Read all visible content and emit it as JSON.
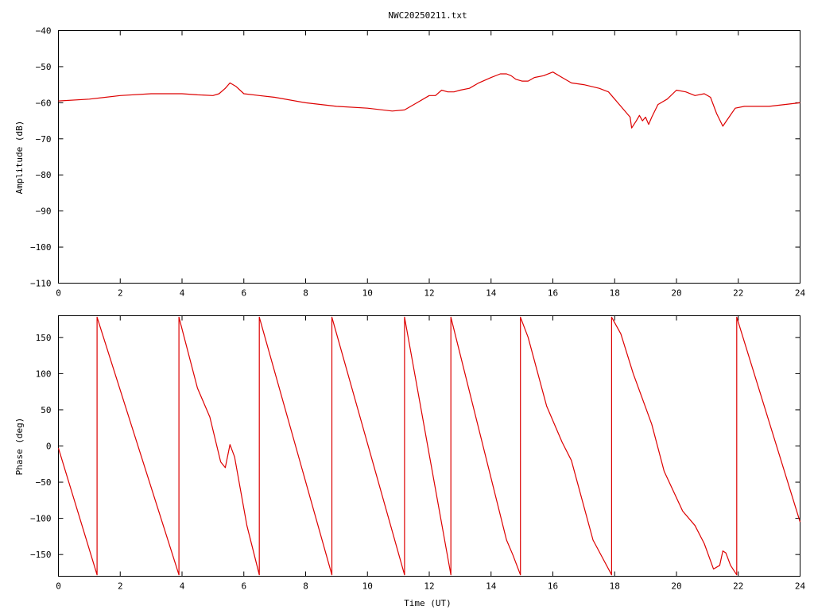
{
  "chart_data": [
    {
      "type": "line",
      "title": "NWC20250211.txt",
      "xlabel": "",
      "ylabel": "Amplitude (dB)",
      "xlim": [
        0,
        24
      ],
      "ylim": [
        -110,
        -40
      ],
      "x_ticks": [
        0,
        2,
        4,
        6,
        8,
        10,
        12,
        14,
        16,
        18,
        20,
        22,
        24
      ],
      "y_ticks": [
        -110,
        -100,
        -90,
        -80,
        -70,
        -60,
        -50,
        -40
      ],
      "y_tick_labels": [
        "−110",
        "−100",
        "−90",
        "−80",
        "−70",
        "−60",
        "−50",
        "−40"
      ],
      "grid": false,
      "color": "#dd0000",
      "series": [
        {
          "x": [
            0,
            1,
            2,
            3,
            4,
            4.5,
            5,
            5.2,
            5.4,
            5.55,
            5.75,
            6,
            6.5,
            7,
            8,
            9,
            10,
            10.8,
            11.2,
            11.6,
            12,
            12.2,
            12.4,
            12.6,
            12.8,
            13,
            13.3,
            13.6,
            14,
            14.3,
            14.5,
            14.65,
            14.8,
            15,
            15.2,
            15.4,
            15.7,
            16,
            16.3,
            16.6,
            17,
            17.5,
            17.8,
            18,
            18.3,
            18.5,
            18.55,
            18.7,
            18.8,
            18.9,
            19,
            19.1,
            19.2,
            19.4,
            19.7,
            20,
            20.3,
            20.6,
            20.9,
            21.1,
            21.3,
            21.5,
            21.7,
            21.9,
            22.2,
            23,
            24
          ],
          "y": [
            -59.5,
            -59,
            -58,
            -57.5,
            -57.5,
            -57.8,
            -58,
            -57.5,
            -56,
            -54.5,
            -55.5,
            -57.5,
            -58,
            -58.5,
            -60,
            -61,
            -61.5,
            -62.3,
            -62,
            -60,
            -58,
            -58,
            -56.5,
            -57,
            -57,
            -56.5,
            -56,
            -54.5,
            -53,
            -52,
            -52,
            -52.5,
            -53.5,
            -54,
            -54,
            -53,
            -52.5,
            -51.5,
            -53,
            -54.5,
            -55,
            -56,
            -57,
            -59,
            -62,
            -64,
            -67,
            -65,
            -63.5,
            -65,
            -64,
            -66,
            -64,
            -60.5,
            -59,
            -56.5,
            -57,
            -58,
            -57.5,
            -58.5,
            -63,
            -66.5,
            -64,
            -61.5,
            -61,
            -61,
            -60
          ]
        }
      ]
    },
    {
      "type": "line",
      "title": "",
      "xlabel": "Time (UT)",
      "ylabel": "Phase (deg)",
      "xlim": [
        0,
        24
      ],
      "ylim": [
        -180,
        180
      ],
      "x_ticks": [
        0,
        2,
        4,
        6,
        8,
        10,
        12,
        14,
        16,
        18,
        20,
        22,
        24
      ],
      "y_ticks": [
        -150,
        -100,
        -50,
        0,
        50,
        100,
        150
      ],
      "y_tick_labels": [
        "−150",
        "−100",
        "−50",
        "0",
        "50",
        "100",
        "150"
      ],
      "grid": false,
      "color": "#dd0000",
      "series": [
        {
          "x": [
            0,
            1.25,
            1.25,
            3.9,
            3.9,
            4.5,
            4.9,
            5.25,
            5.4,
            5.55,
            5.7,
            6.1,
            6.5,
            6.5,
            8.85,
            8.85,
            11.2,
            11.2,
            12.7,
            12.7,
            14.5,
            14.7,
            14.95,
            14.95,
            15.2,
            15.8,
            16.3,
            16.6,
            17.3,
            17.9,
            17.9,
            18.2,
            18.6,
            19.2,
            19.6,
            20.2,
            20.6,
            20.9,
            21.2,
            21.4,
            21.5,
            21.6,
            21.75,
            21.95,
            21.95,
            24
          ],
          "y": [
            -3,
            -178,
            178,
            -178,
            178,
            80,
            40,
            -22,
            -30,
            2,
            -15,
            -110,
            -178,
            178,
            -178,
            178,
            -178,
            178,
            -178,
            178,
            -130,
            -150,
            -178,
            178,
            150,
            55,
            5,
            -20,
            -130,
            -178,
            178,
            155,
            100,
            30,
            -35,
            -90,
            -110,
            -135,
            -170,
            -165,
            -145,
            -148,
            -165,
            -178,
            178,
            -105
          ]
        }
      ]
    }
  ]
}
